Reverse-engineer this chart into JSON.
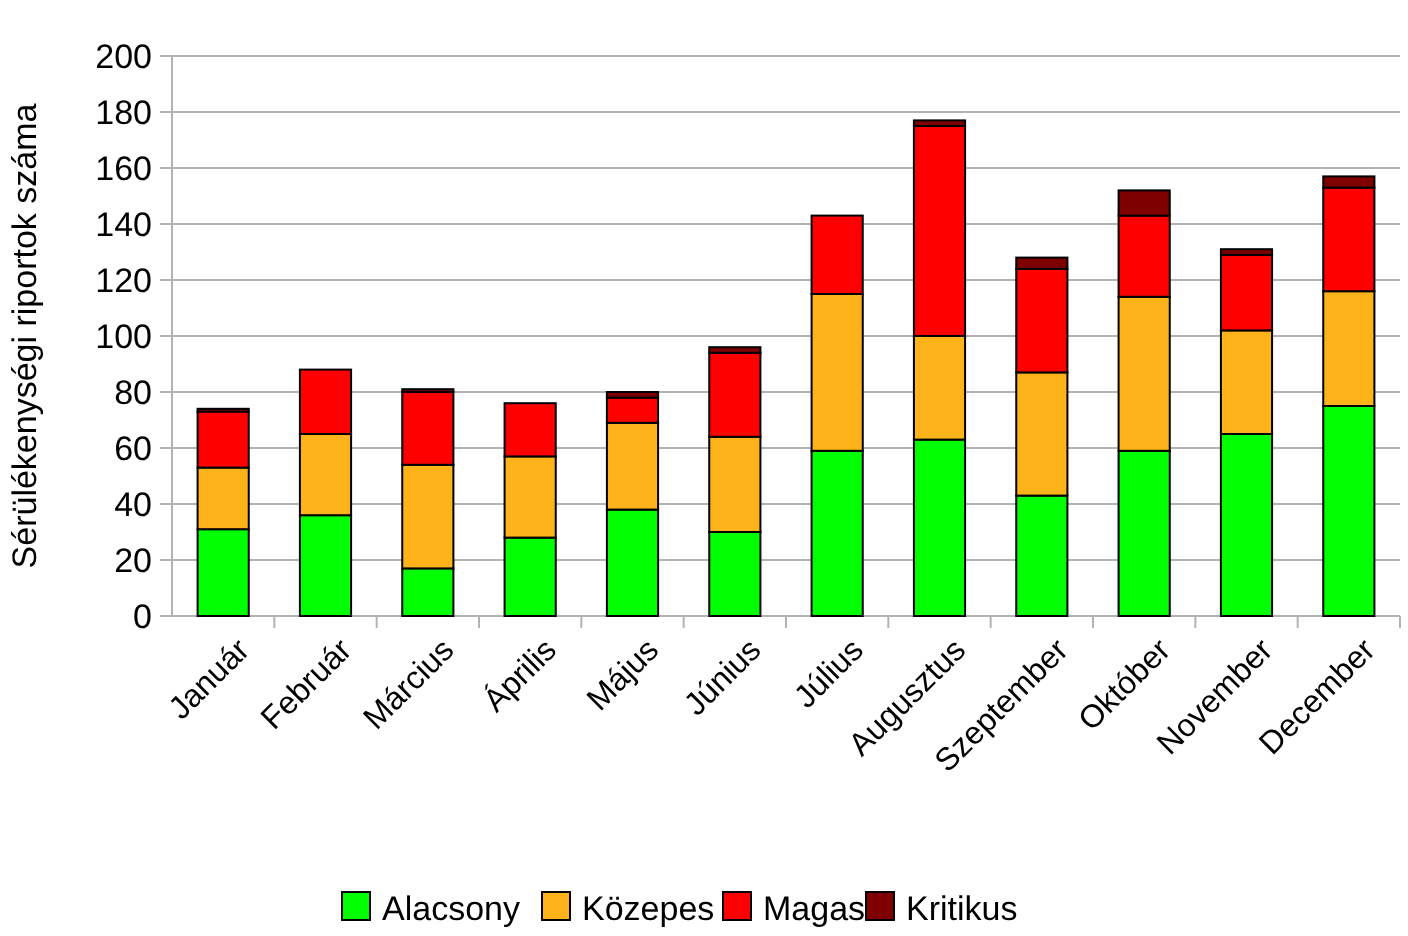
{
  "chart_data": {
    "type": "bar",
    "stacked": true,
    "ylabel": "Sérülékenységi riportok száma",
    "categories": [
      "Január",
      "Február",
      "Március",
      "Április",
      "Május",
      "Június",
      "Július",
      "Augusztus",
      "Szeptember",
      "Október",
      "November",
      "December"
    ],
    "series": [
      {
        "name": "Alacsony",
        "color": "#00ff00",
        "values": [
          31,
          36,
          17,
          28,
          38,
          30,
          59,
          63,
          43,
          59,
          65,
          75
        ]
      },
      {
        "name": "Közepes",
        "color": "#ffb31a",
        "values": [
          22,
          29,
          37,
          29,
          31,
          34,
          56,
          37,
          44,
          55,
          37,
          41
        ]
      },
      {
        "name": "Magas",
        "color": "#ff0000",
        "values": [
          20,
          23,
          26,
          19,
          9,
          30,
          28,
          75,
          37,
          29,
          27,
          37
        ]
      },
      {
        "name": "Kritikus",
        "color": "#7f0000",
        "values": [
          1,
          0,
          1,
          0,
          2,
          2,
          0,
          2,
          4,
          9,
          2,
          4
        ]
      }
    ],
    "ylim": [
      0,
      200
    ],
    "yticks": [
      0,
      20,
      40,
      60,
      80,
      100,
      120,
      140,
      160,
      180,
      200
    ],
    "grid": "y",
    "legend": "bottom"
  }
}
